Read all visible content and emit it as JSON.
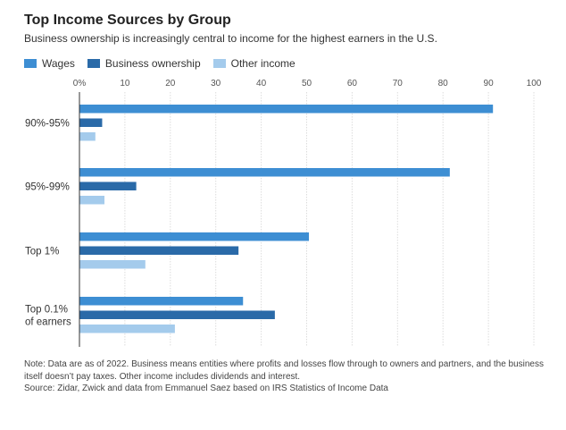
{
  "title": "Top Income Sources by Group",
  "subtitle": "Business ownership is increasingly central to income for the highest earners in the U.S.",
  "note": "Note: Data are as of 2022. Business means entities where profits and losses flow through to owners and partners, and the business itself doesn’t pay taxes. Other income includes dividends and interest.",
  "source": "Source: Zidar, Zwick and data from Emmanuel Saez based on IRS Statistics of Income Data",
  "chart_data": {
    "type": "bar",
    "orientation": "horizontal",
    "title": "Top Income Sources by Group",
    "subtitle": "Business ownership is increasingly central to income for the highest earners in the U.S.",
    "categories": [
      [
        "90%-95%"
      ],
      [
        "95%-99%"
      ],
      [
        "Top 1%"
      ],
      [
        "Top 0.1%",
        "of earners"
      ]
    ],
    "series": [
      {
        "name": "Wages",
        "color": "#3d8ed3",
        "values": [
          91,
          81.5,
          50.5,
          36
        ]
      },
      {
        "name": "Business ownership",
        "color": "#2a6aa8",
        "values": [
          5,
          12.5,
          35,
          43
        ]
      },
      {
        "name": "Other income",
        "color": "#a4cbec",
        "values": [
          3.5,
          5.5,
          14.5,
          21
        ]
      }
    ],
    "xlim": [
      0,
      100
    ],
    "xticks": [
      "0%",
      "10",
      "20",
      "30",
      "40",
      "50",
      "60",
      "70",
      "80",
      "90",
      "100"
    ],
    "legend_position": "top-left",
    "grid": true
  }
}
